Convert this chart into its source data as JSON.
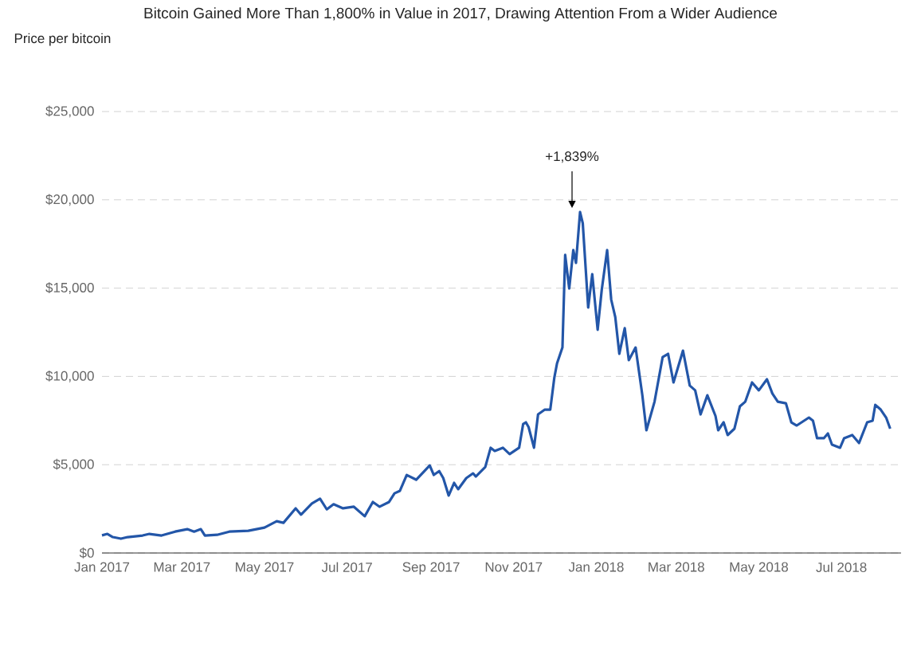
{
  "chart_data": {
    "type": "line",
    "title": "Bitcoin Gained More Than 1,800% in Value in 2017, Drawing Attention From a Wider Audience",
    "ylabel": "Price per bitcoin",
    "x": [
      "2017-01-01",
      "2017-01-05",
      "2017-01-09",
      "2017-01-15",
      "2017-01-20",
      "2017-01-31",
      "2017-02-05",
      "2017-02-14",
      "2017-02-24",
      "2017-03-05",
      "2017-03-10",
      "2017-03-15",
      "2017-03-18",
      "2017-03-27",
      "2017-04-05",
      "2017-04-19",
      "2017-05-01",
      "2017-05-10",
      "2017-05-15",
      "2017-05-24",
      "2017-05-28",
      "2017-06-05",
      "2017-06-11",
      "2017-06-16",
      "2017-06-21",
      "2017-06-28",
      "2017-07-06",
      "2017-07-14",
      "2017-07-20",
      "2017-07-25",
      "2017-08-01",
      "2017-08-05",
      "2017-08-09",
      "2017-08-14",
      "2017-08-21",
      "2017-08-31",
      "2017-09-03",
      "2017-09-07",
      "2017-09-10",
      "2017-09-14",
      "2017-09-18",
      "2017-09-21",
      "2017-09-27",
      "2017-10-02",
      "2017-10-04",
      "2017-10-11",
      "2017-10-15",
      "2017-10-18",
      "2017-10-24",
      "2017-10-29",
      "2017-11-05",
      "2017-11-08",
      "2017-11-10",
      "2017-11-12",
      "2017-11-16",
      "2017-11-19",
      "2017-11-24",
      "2017-11-28",
      "2017-12-01",
      "2017-12-03",
      "2017-12-07",
      "2017-12-09",
      "2017-12-12",
      "2017-12-15",
      "2017-12-17",
      "2017-12-20",
      "2017-12-22",
      "2017-12-26",
      "2017-12-29",
      "2018-01-02",
      "2018-01-05",
      "2018-01-09",
      "2018-01-12",
      "2018-01-15",
      "2018-01-18",
      "2018-01-22",
      "2018-01-25",
      "2018-01-30",
      "2018-02-04",
      "2018-02-07",
      "2018-02-13",
      "2018-02-19",
      "2018-02-23",
      "2018-02-27",
      "2018-03-06",
      "2018-03-11",
      "2018-03-15",
      "2018-03-19",
      "2018-03-24",
      "2018-03-30",
      "2018-04-01",
      "2018-04-05",
      "2018-04-08",
      "2018-04-13",
      "2018-04-17",
      "2018-04-21",
      "2018-04-26",
      "2018-05-01",
      "2018-05-07",
      "2018-05-11",
      "2018-05-15",
      "2018-05-21",
      "2018-05-25",
      "2018-05-29",
      "2018-06-07",
      "2018-06-10",
      "2018-06-13",
      "2018-06-18",
      "2018-06-21",
      "2018-06-24",
      "2018-06-30",
      "2018-07-03",
      "2018-07-09",
      "2018-07-14",
      "2018-07-20",
      "2018-07-24",
      "2018-07-26",
      "2018-07-30",
      "2018-08-03",
      "2018-08-06"
    ],
    "series": [
      {
        "color": "#2356a8",
        "values": [
          1000,
          1080,
          900,
          810,
          900,
          990,
          1080,
          990,
          1210,
          1350,
          1210,
          1350,
          990,
          1030,
          1210,
          1260,
          1440,
          1800,
          1710,
          2530,
          2170,
          2800,
          3070,
          2470,
          2760,
          2530,
          2620,
          2080,
          2890,
          2620,
          2890,
          3380,
          3520,
          4420,
          4150,
          4960,
          4420,
          4640,
          4240,
          3250,
          3970,
          3610,
          4240,
          4510,
          4330,
          4870,
          5960,
          5780,
          5960,
          5600,
          5960,
          7310,
          7400,
          7130,
          5960,
          7850,
          8120,
          8120,
          9930,
          10740,
          11640,
          16880,
          14980,
          17150,
          16430,
          19310,
          18680,
          13900,
          15790,
          12640,
          14890,
          17150,
          14350,
          13360,
          11280,
          12730,
          10920,
          11640,
          8930,
          6950,
          8570,
          11100,
          11280,
          9660,
          11460,
          9480,
          9210,
          7850,
          8930,
          7760,
          6950,
          7400,
          6680,
          7040,
          8300,
          8570,
          9660,
          9210,
          9840,
          9030,
          8570,
          8480,
          7400,
          7220,
          7670,
          7490,
          6500,
          6500,
          6770,
          6140,
          5960,
          6500,
          6680,
          6230,
          7400,
          7490,
          8390,
          8120,
          7670,
          7040
        ]
      }
    ],
    "xlim": [
      "2017-01-01",
      "2018-08-14"
    ],
    "xticks": [
      {
        "value": "2017-01-01",
        "label": "Jan 2017"
      },
      {
        "value": "2017-03-01",
        "label": "Mar 2017"
      },
      {
        "value": "2017-05-01",
        "label": "May 2017"
      },
      {
        "value": "2017-07-01",
        "label": "Jul 2017"
      },
      {
        "value": "2017-09-01",
        "label": "Sep 2017"
      },
      {
        "value": "2017-11-01",
        "label": "Nov 2017"
      },
      {
        "value": "2018-01-01",
        "label": "Jan 2018"
      },
      {
        "value": "2018-03-01",
        "label": "Mar 2018"
      },
      {
        "value": "2018-05-01",
        "label": "May 2018"
      },
      {
        "value": "2018-07-01",
        "label": "Jul 2018"
      }
    ],
    "ylim": [
      0,
      25000
    ],
    "yticks": [
      {
        "value": 0,
        "label": "$0"
      },
      {
        "value": 5000,
        "label": "$5,000"
      },
      {
        "value": 10000,
        "label": "$10,000"
      },
      {
        "value": 15000,
        "label": "$15,000"
      },
      {
        "value": 20000,
        "label": "$20,000"
      },
      {
        "value": 25000,
        "label": "$25,000"
      }
    ],
    "grid": "y",
    "annotations": [
      "+1,839%"
    ]
  }
}
